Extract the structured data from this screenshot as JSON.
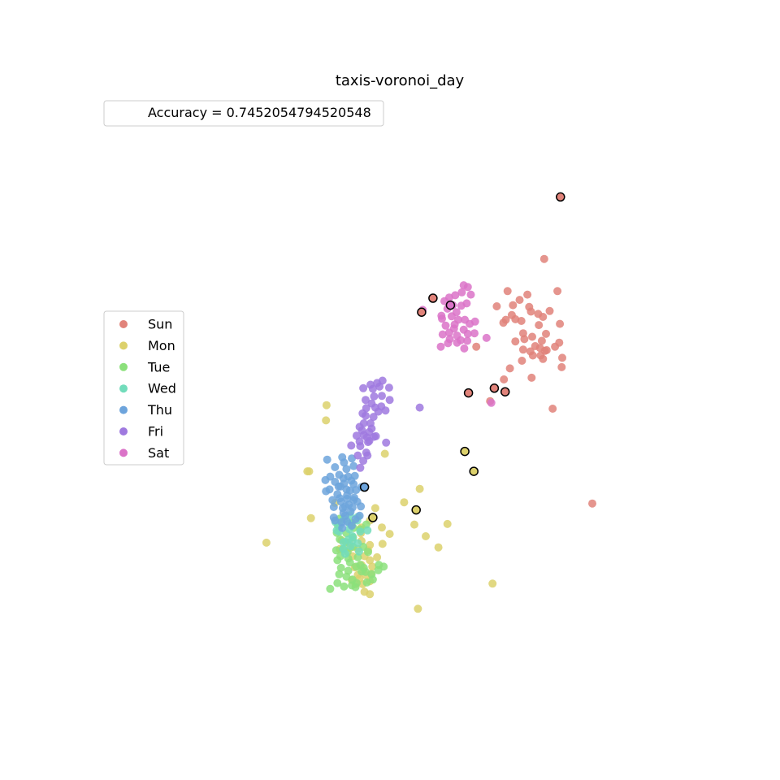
{
  "chart_data": {
    "type": "scatter",
    "title": "taxis-voronoi_day",
    "xlabel": "",
    "ylabel": "",
    "axes_visible": false,
    "grid": false,
    "annotation": "Accuracy = 0.7452054794520548",
    "annotation_placement": "upper-left",
    "legend_placement": "center-left",
    "xlim": [
      0,
      100
    ],
    "ylim": [
      0,
      100
    ],
    "series": [
      {
        "name": "Sun",
        "color": "#e1837a",
        "points": [
          [
            74.3,
            72.4
          ],
          [
            76.5,
            66.9
          ],
          [
            68.2,
            66.9
          ],
          [
            71.5,
            66.3
          ],
          [
            70.2,
            65.4
          ],
          [
            69.1,
            64.5
          ],
          [
            66.4,
            64.3
          ],
          [
            71.8,
            64.2
          ],
          [
            72.1,
            63.4
          ],
          [
            73.3,
            63.0
          ],
          [
            75.2,
            63.5
          ],
          [
            68.9,
            62.8
          ],
          [
            67.9,
            62.0
          ],
          [
            69.5,
            62.1
          ],
          [
            70.5,
            61.8
          ],
          [
            67.5,
            61.5
          ],
          [
            76.9,
            61.3
          ],
          [
            74.1,
            62.5
          ],
          [
            73.4,
            61.1
          ],
          [
            70.8,
            59.7
          ],
          [
            72.3,
            59.1
          ],
          [
            74.6,
            59.6
          ],
          [
            69.5,
            58.3
          ],
          [
            71.0,
            58.7
          ],
          [
            73.9,
            58.4
          ],
          [
            72.8,
            57.5
          ],
          [
            76.8,
            58.1
          ],
          [
            73.6,
            57.2
          ],
          [
            70.8,
            56.9
          ],
          [
            72.0,
            56.6
          ],
          [
            74.4,
            56.7
          ],
          [
            76.1,
            57.4
          ],
          [
            72.4,
            55.9
          ],
          [
            73.7,
            55.9
          ],
          [
            74.7,
            56.8
          ],
          [
            70.6,
            55.0
          ],
          [
            74.1,
            55.3
          ],
          [
            77.3,
            55.5
          ],
          [
            63.0,
            57.4
          ],
          [
            68.6,
            53.7
          ],
          [
            67.6,
            51.8
          ],
          [
            77.2,
            53.9
          ],
          [
            72.2,
            52.1
          ],
          [
            75.7,
            46.8
          ],
          [
            65.3,
            48.1
          ],
          [
            82.3,
            30.6
          ]
        ]
      },
      {
        "name": "Mon",
        "color": "#dcd16c",
        "points": [
          [
            38.1,
            47.4
          ],
          [
            38.0,
            44.8
          ],
          [
            47.8,
            39.1
          ],
          [
            34.9,
            36.1
          ],
          [
            35.2,
            36.1
          ],
          [
            53.6,
            33.1
          ],
          [
            39.5,
            30.7
          ],
          [
            51.0,
            30.8
          ],
          [
            46.2,
            29.8
          ],
          [
            35.5,
            28.1
          ],
          [
            45.3,
            27.7
          ],
          [
            47.3,
            26.5
          ],
          [
            52.7,
            27.0
          ],
          [
            58.2,
            27.1
          ],
          [
            43.9,
            26.5
          ],
          [
            48.6,
            25.4
          ],
          [
            54.6,
            25.0
          ],
          [
            43.8,
            25.5
          ],
          [
            28.1,
            23.9
          ],
          [
            41.8,
            23.9
          ],
          [
            40.6,
            24.3
          ],
          [
            43.9,
            24.2
          ],
          [
            45.3,
            23.5
          ],
          [
            42.0,
            23.0
          ],
          [
            43.3,
            22.8
          ],
          [
            47.4,
            23.7
          ],
          [
            45.0,
            22.6
          ],
          [
            40.3,
            22.8
          ],
          [
            56.7,
            23.1
          ],
          [
            42.4,
            21.6
          ],
          [
            44.4,
            21.6
          ],
          [
            45.3,
            20.9
          ],
          [
            46.5,
            21.4
          ],
          [
            43.9,
            20.1
          ],
          [
            45.7,
            19.8
          ],
          [
            42.8,
            19.7
          ],
          [
            44.2,
            19.2
          ],
          [
            45.5,
            18.6
          ],
          [
            43.3,
            18.4
          ],
          [
            44.7,
            18.3
          ],
          [
            45.3,
            17.3
          ],
          [
            44.1,
            16.8
          ],
          [
            42.9,
            16.8
          ],
          [
            43.6,
            17.8
          ],
          [
            65.7,
            16.9
          ],
          [
            44.4,
            15.5
          ],
          [
            45.3,
            15.1
          ],
          [
            42.3,
            17.5
          ],
          [
            53.3,
            12.6
          ]
        ]
      },
      {
        "name": "Tue",
        "color": "#8be07b",
        "points": [
          [
            40.3,
            28.0
          ],
          [
            42.3,
            27.3
          ],
          [
            42.6,
            26.4
          ],
          [
            43.7,
            26.2
          ],
          [
            44.7,
            27.0
          ],
          [
            40.0,
            26.8
          ],
          [
            39.8,
            25.6
          ],
          [
            41.4,
            25.5
          ],
          [
            42.5,
            24.8
          ],
          [
            40.3,
            24.5
          ],
          [
            41.3,
            24.0
          ],
          [
            42.5,
            23.2
          ],
          [
            44.2,
            23.2
          ],
          [
            45.0,
            22.3
          ],
          [
            39.7,
            22.6
          ],
          [
            40.8,
            22.8
          ],
          [
            41.6,
            22.3
          ],
          [
            40.4,
            21.6
          ],
          [
            41.7,
            21.2
          ],
          [
            43.3,
            21.4
          ],
          [
            39.9,
            20.9
          ],
          [
            42.0,
            20.5
          ],
          [
            43.7,
            20.1
          ],
          [
            40.5,
            19.6
          ],
          [
            41.7,
            19.1
          ],
          [
            43.0,
            19.8
          ],
          [
            44.3,
            19.6
          ],
          [
            46.8,
            20.1
          ],
          [
            40.2,
            18.5
          ],
          [
            41.4,
            18.1
          ],
          [
            42.4,
            17.6
          ],
          [
            45.8,
            17.6
          ],
          [
            44.6,
            18.9
          ],
          [
            47.6,
            19.8
          ],
          [
            41.0,
            16.4
          ],
          [
            42.3,
            16.6
          ],
          [
            44.8,
            17.1
          ],
          [
            45.6,
            18.5
          ],
          [
            43.1,
            17.0
          ],
          [
            43.9,
            19.0
          ],
          [
            46.7,
            19.2
          ],
          [
            39.9,
            17.0
          ],
          [
            38.7,
            16.0
          ],
          [
            42.9,
            16.3
          ]
        ]
      },
      {
        "name": "Wed",
        "color": "#72dcbb",
        "points": [
          [
            42.0,
            28.6
          ],
          [
            43.3,
            28.3
          ],
          [
            41.0,
            27.9
          ],
          [
            39.6,
            27.4
          ],
          [
            41.9,
            27.2
          ],
          [
            43.2,
            27.7
          ],
          [
            40.3,
            26.8
          ],
          [
            41.9,
            26.2
          ],
          [
            43.7,
            25.8
          ],
          [
            40.2,
            25.8
          ],
          [
            42.4,
            25.0
          ],
          [
            41.7,
            24.4
          ],
          [
            40.9,
            24.0
          ],
          [
            43.3,
            23.8
          ],
          [
            42.1,
            23.3
          ],
          [
            40.9,
            22.8
          ],
          [
            43.5,
            22.4
          ],
          [
            41.2,
            22.0
          ],
          [
            44.9,
            26.0
          ],
          [
            39.8,
            26.0
          ],
          [
            42.4,
            24.3
          ]
        ]
      },
      {
        "name": "Thu",
        "color": "#6da4dc",
        "points": [
          [
            38.2,
            38.1
          ],
          [
            40.7,
            38.5
          ],
          [
            42.3,
            38.3
          ],
          [
            41.0,
            37.6
          ],
          [
            42.6,
            37.0
          ],
          [
            39.5,
            36.8
          ],
          [
            41.4,
            36.5
          ],
          [
            40.2,
            35.5
          ],
          [
            41.7,
            35.2
          ],
          [
            42.8,
            35.3
          ],
          [
            38.7,
            35.2
          ],
          [
            40.9,
            34.9
          ],
          [
            42.2,
            34.5
          ],
          [
            39.5,
            34.3
          ],
          [
            41.0,
            34.0
          ],
          [
            42.6,
            33.9
          ],
          [
            38.6,
            33.0
          ],
          [
            40.1,
            33.5
          ],
          [
            41.4,
            33.0
          ],
          [
            43.0,
            32.9
          ],
          [
            39.9,
            32.2
          ],
          [
            41.5,
            32.0
          ],
          [
            42.7,
            31.6
          ],
          [
            39.1,
            31.2
          ],
          [
            40.5,
            30.9
          ],
          [
            41.8,
            30.4
          ],
          [
            43.2,
            30.9
          ],
          [
            40.8,
            29.8
          ],
          [
            42.1,
            29.2
          ],
          [
            40.9,
            29.0
          ],
          [
            39.3,
            28.2
          ],
          [
            41.2,
            28.5
          ],
          [
            42.9,
            27.9
          ],
          [
            39.5,
            27.7
          ],
          [
            41.5,
            27.5
          ],
          [
            42.3,
            26.8
          ],
          [
            40.7,
            26.4
          ],
          [
            39.3,
            30.0
          ],
          [
            43.8,
            30.1
          ],
          [
            42.6,
            31.2
          ],
          [
            37.9,
            34.6
          ],
          [
            38.0,
            32.7
          ],
          [
            43.9,
            33.4
          ],
          [
            41.5,
            31.4
          ],
          [
            42.4,
            29.9
          ],
          [
            40.6,
            27.4
          ],
          [
            40.3,
            31.5
          ],
          [
            42.0,
            32.8
          ],
          [
            43.6,
            28.5
          ],
          [
            40.4,
            33.5
          ],
          [
            41.2,
            30.1
          ]
        ]
      },
      {
        "name": "Fri",
        "color": "#9f79df",
        "points": [
          [
            45.4,
            50.9
          ],
          [
            46.9,
            50.6
          ],
          [
            45.8,
            50.2
          ],
          [
            44.2,
            50.3
          ],
          [
            46.0,
            48.9
          ],
          [
            44.6,
            48.3
          ],
          [
            45.6,
            47.7
          ],
          [
            44.7,
            46.9
          ],
          [
            44.1,
            46.0
          ],
          [
            45.9,
            45.4
          ],
          [
            44.3,
            44.3
          ],
          [
            45.6,
            43.4
          ],
          [
            44.3,
            42.3
          ],
          [
            46.3,
            42.1
          ],
          [
            45.2,
            41.3
          ],
          [
            44.8,
            41.9
          ],
          [
            44.0,
            43.1
          ],
          [
            45.4,
            44.3
          ],
          [
            46.0,
            42.0
          ],
          [
            46.7,
            46.3
          ],
          [
            47.9,
            46.5
          ],
          [
            48.6,
            48.3
          ],
          [
            47.3,
            49.0
          ],
          [
            48.5,
            50.4
          ],
          [
            46.5,
            51.2
          ],
          [
            47.4,
            51.6
          ],
          [
            46.2,
            47.0
          ],
          [
            47.2,
            47.2
          ],
          [
            45.0,
            41.1
          ],
          [
            44.7,
            39.3
          ],
          [
            43.7,
            40.4
          ],
          [
            44.9,
            38.8
          ],
          [
            44.2,
            37.9
          ],
          [
            43.7,
            36.7
          ],
          [
            43.3,
            38.8
          ],
          [
            43.6,
            43.7
          ],
          [
            44.6,
            45.6
          ],
          [
            42.2,
            40.5
          ],
          [
            43.6,
            41.2
          ],
          [
            43.1,
            42.2
          ],
          [
            48.0,
            41.0
          ],
          [
            53.6,
            47.0
          ],
          [
            45.2,
            42.8
          ]
        ]
      },
      {
        "name": "Sat",
        "color": "#db73c8",
        "points": [
          [
            60.9,
            67.9
          ],
          [
            61.6,
            67.6
          ],
          [
            60.6,
            66.7
          ],
          [
            62.1,
            66.3
          ],
          [
            59.5,
            66.2
          ],
          [
            58.5,
            65.8
          ],
          [
            57.7,
            65.2
          ],
          [
            59.1,
            64.5
          ],
          [
            60.5,
            64.4
          ],
          [
            61.4,
            64.8
          ],
          [
            58.2,
            63.9
          ],
          [
            59.7,
            63.3
          ],
          [
            57.2,
            62.7
          ],
          [
            58.9,
            62.6
          ],
          [
            60.0,
            62.0
          ],
          [
            61.1,
            62.0
          ],
          [
            59.4,
            61.2
          ],
          [
            57.9,
            61.0
          ],
          [
            61.9,
            61.3
          ],
          [
            62.8,
            61.7
          ],
          [
            60.9,
            60.3
          ],
          [
            59.3,
            60.5
          ],
          [
            58.5,
            59.8
          ],
          [
            61.6,
            59.6
          ],
          [
            59.8,
            59.3
          ],
          [
            60.4,
            58.5
          ],
          [
            62.7,
            59.7
          ],
          [
            57.4,
            59.5
          ],
          [
            58.6,
            58.7
          ],
          [
            61.5,
            58.4
          ],
          [
            64.7,
            58.9
          ],
          [
            57.1,
            57.4
          ],
          [
            54.1,
            63.7
          ],
          [
            58.3,
            58.0
          ],
          [
            59.8,
            58.1
          ],
          [
            61.0,
            57.1
          ],
          [
            65.5,
            47.8
          ],
          [
            57.3,
            62.2
          ]
        ]
      }
    ],
    "highlighted_points": [
      {
        "series": "Sun",
        "x": 77.0,
        "y": 83.0
      },
      {
        "series": "Sun",
        "x": 55.8,
        "y": 65.7
      },
      {
        "series": "Sat",
        "x": 58.7,
        "y": 64.5
      },
      {
        "series": "Sun",
        "x": 53.9,
        "y": 63.3
      },
      {
        "series": "Sun",
        "x": 61.7,
        "y": 49.5
      },
      {
        "series": "Sun",
        "x": 66.0,
        "y": 50.3
      },
      {
        "series": "Sun",
        "x": 67.8,
        "y": 49.7
      },
      {
        "series": "Mon",
        "x": 61.1,
        "y": 39.5
      },
      {
        "series": "Mon",
        "x": 62.6,
        "y": 36.1
      },
      {
        "series": "Thu",
        "x": 44.4,
        "y": 33.4
      },
      {
        "series": "Mon",
        "x": 53.0,
        "y": 29.5
      },
      {
        "series": "Mon",
        "x": 45.8,
        "y": 28.2
      }
    ]
  }
}
